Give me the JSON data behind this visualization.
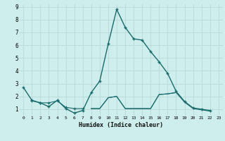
{
  "xlabel": "Humidex (Indice chaleur)",
  "xlim": [
    -0.5,
    23.5
  ],
  "ylim": [
    0.5,
    9.2
  ],
  "xticks": [
    0,
    1,
    2,
    3,
    4,
    5,
    6,
    7,
    8,
    9,
    10,
    11,
    12,
    13,
    14,
    15,
    16,
    17,
    18,
    19,
    20,
    21,
    22,
    23
  ],
  "yticks": [
    1,
    2,
    3,
    4,
    5,
    6,
    7,
    8,
    9
  ],
  "bg_color": "#ceeeed",
  "grid_color": "#b8d8d8",
  "line_color": "#1a6b6b",
  "series0_x": [
    0,
    1,
    2,
    3,
    4,
    5,
    6,
    7,
    8,
    9,
    10,
    11,
    12,
    13,
    14,
    15,
    16,
    17,
    18,
    19,
    20,
    21,
    22
  ],
  "series0_y": [
    2.7,
    1.7,
    1.5,
    1.2,
    1.7,
    1.05,
    0.7,
    0.9,
    2.3,
    3.2,
    6.1,
    8.8,
    7.4,
    6.5,
    6.4,
    5.5,
    4.7,
    3.8,
    2.4,
    1.6,
    1.1,
    1.0,
    0.9
  ],
  "series1_x": [
    1,
    2,
    3,
    4,
    5,
    6,
    7
  ],
  "series1_y": [
    1.65,
    1.5,
    1.5,
    1.65,
    1.15,
    1.05,
    1.05
  ],
  "series2_x": [
    8,
    9,
    10,
    11,
    12,
    13,
    14,
    15,
    16,
    17,
    18,
    19,
    20,
    21,
    22
  ],
  "series2_y": [
    1.05,
    1.05,
    1.9,
    2.0,
    1.05,
    1.05,
    1.05,
    1.05,
    2.15,
    2.2,
    2.3,
    1.55,
    1.05,
    0.95,
    0.85
  ],
  "series3_x": [
    8,
    9,
    10,
    11,
    12,
    13,
    14,
    15,
    16,
    17,
    18
  ],
  "series3_y": [
    1.05,
    1.05,
    1.9,
    2.0,
    1.05,
    1.05,
    1.05,
    1.05,
    2.15,
    2.2,
    2.3
  ]
}
